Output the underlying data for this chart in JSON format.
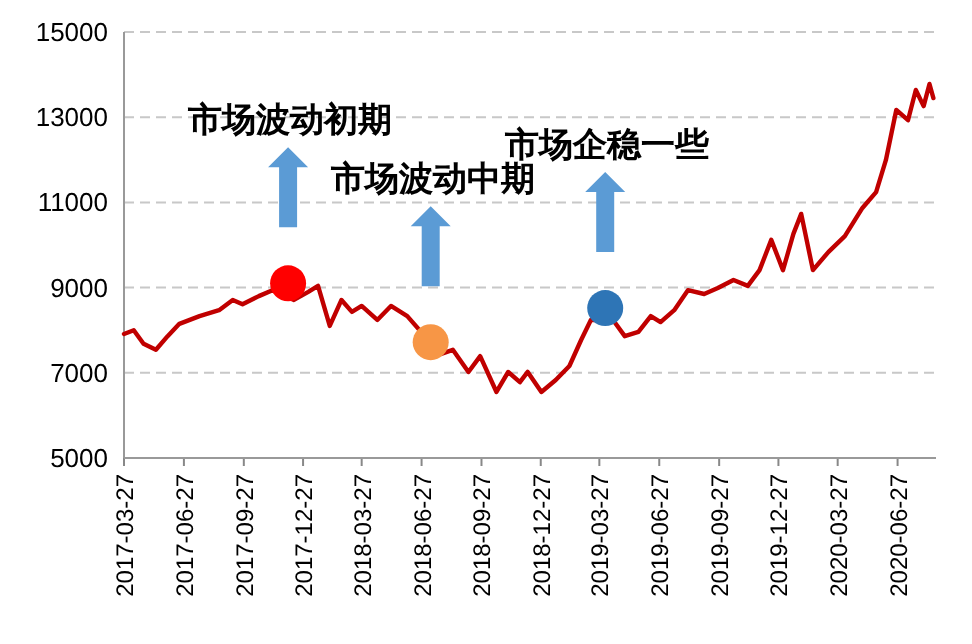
{
  "chart_data": {
    "type": "line",
    "xlim": [
      "2017-03-27",
      "2020-08-25"
    ],
    "xticks": [
      "2017-03-27",
      "2017-06-27",
      "2017-09-27",
      "2017-12-27",
      "2018-03-27",
      "2018-06-27",
      "2018-09-27",
      "2018-12-27",
      "2019-03-27",
      "2019-06-27",
      "2019-09-27",
      "2019-12-27",
      "2020-03-27",
      "2020-06-27"
    ],
    "ylim": [
      5000,
      15000
    ],
    "yticks": [
      5000,
      7000,
      9000,
      11000,
      13000,
      15000
    ],
    "grid": "y",
    "x": [
      "2017-03-27",
      "2017-04-11",
      "2017-04-26",
      "2017-05-15",
      "2017-06-02",
      "2017-06-20",
      "2017-07-21",
      "2017-08-20",
      "2017-09-10",
      "2017-09-25",
      "2017-10-20",
      "2017-11-10",
      "2017-12-13",
      "2018-01-04",
      "2018-01-19",
      "2018-02-06",
      "2018-02-24",
      "2018-03-12",
      "2018-03-27",
      "2018-04-20",
      "2018-05-11",
      "2018-06-05",
      "2018-07-26",
      "2018-08-14",
      "2018-09-07",
      "2018-09-25",
      "2018-10-20",
      "2018-11-07",
      "2018-11-25",
      "2018-12-07",
      "2018-12-28",
      "2019-01-19",
      "2019-02-09",
      "2019-02-27",
      "2019-03-14",
      "2019-04-17",
      "2019-05-05",
      "2019-05-26",
      "2019-06-14",
      "2019-06-29",
      "2019-07-20",
      "2019-08-10",
      "2019-09-04",
      "2019-09-25",
      "2019-10-19",
      "2019-11-10",
      "2019-11-28",
      "2019-12-16",
      "2020-01-03",
      "2020-01-19",
      "2020-01-31",
      "2020-02-18",
      "2020-03-13",
      "2020-04-07",
      "2020-05-04",
      "2020-05-25",
      "2020-06-09",
      "2020-06-25",
      "2020-07-13",
      "2020-07-25",
      "2020-08-06",
      "2020-08-15",
      "2020-08-21"
    ],
    "series": [
      {
        "color": "#c00000",
        "values": [
          7910,
          8000,
          7680,
          7540,
          7860,
          8150,
          8330,
          8470,
          8710,
          8610,
          8800,
          8940,
          8710,
          8900,
          9040,
          8100,
          8710,
          8430,
          8570,
          8240,
          8570,
          8330,
          7440,
          7540,
          7020,
          7390,
          6550,
          7020,
          6780,
          7020,
          6550,
          6830,
          7160,
          7770,
          8240,
          8240,
          7860,
          7960,
          8330,
          8190,
          8470,
          8940,
          8850,
          8990,
          9180,
          9040,
          9410,
          10120,
          9410,
          10260,
          10730,
          9410,
          9840,
          10210,
          10870,
          11240,
          11990,
          13170,
          12930,
          13640,
          13260,
          13780,
          13450
        ]
      },
      {
        "type": "scatter",
        "marker": "circle",
        "x": [
          "2017-12-04",
          "2018-07-11",
          "2019-04-05"
        ],
        "colors": [
          "#ff0000",
          "#f79646",
          "#2e75b6"
        ],
        "values": [
          9100,
          7720,
          8520
        ]
      }
    ],
    "annotations": [
      "市场波动初期",
      "市场波动中期",
      "市场企稳一些"
    ]
  }
}
